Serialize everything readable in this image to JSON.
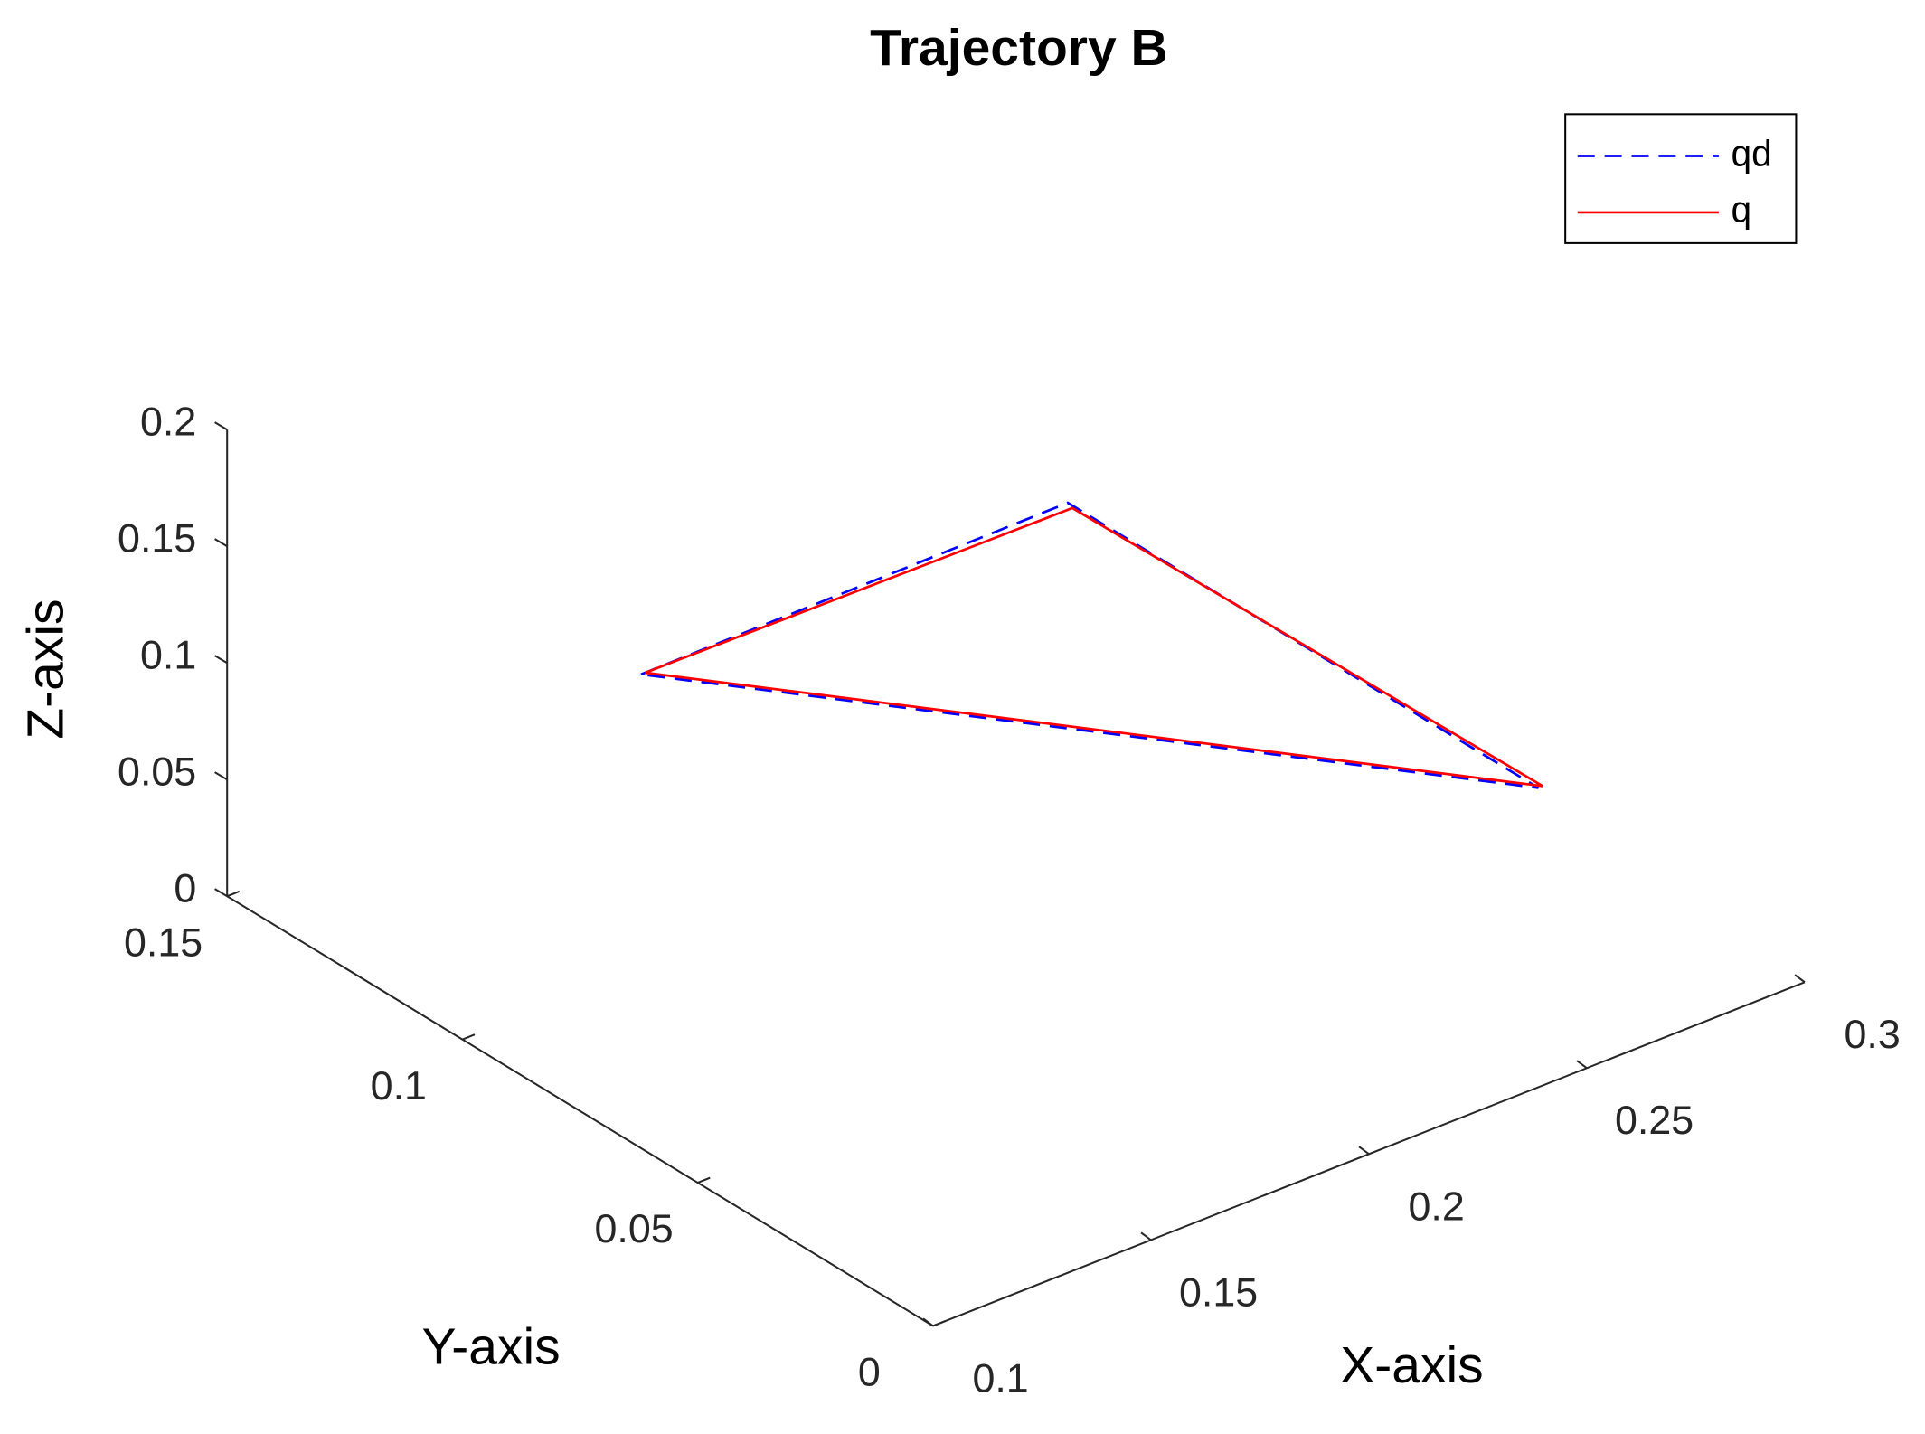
{
  "chart_data": {
    "type": "line3d",
    "title": "Trajectory B",
    "xlabel": "X-axis",
    "ylabel": "Y-axis",
    "zlabel": "Z-axis",
    "xlim": [
      0.1,
      0.3
    ],
    "ylim": [
      0,
      0.15
    ],
    "zlim": [
      0,
      0.2
    ],
    "xticks": [
      0.1,
      0.15,
      0.2,
      0.25,
      0.3
    ],
    "yticks": [
      0,
      0.05,
      0.1,
      0.15
    ],
    "zticks": [
      0,
      0.05,
      0.1,
      0.15,
      0.2
    ],
    "legend": "top-right",
    "series": [
      {
        "name": "qd",
        "color": "#0000ff",
        "dash": true,
        "x": [
          0.155,
          0.227,
          0.254,
          0.155
        ],
        "y": [
          0.113,
          0.089,
          0.014,
          0.113
        ],
        "z": [
          0.1,
          0.15,
          0.1,
          0.1
        ]
      },
      {
        "name": "q",
        "color": "#ff0000",
        "dash": false,
        "x": [
          0.156,
          0.227,
          0.255,
          0.156
        ],
        "y": [
          0.113,
          0.088,
          0.014,
          0.113
        ],
        "z": [
          0.1,
          0.149,
          0.1,
          0.1
        ]
      }
    ]
  }
}
